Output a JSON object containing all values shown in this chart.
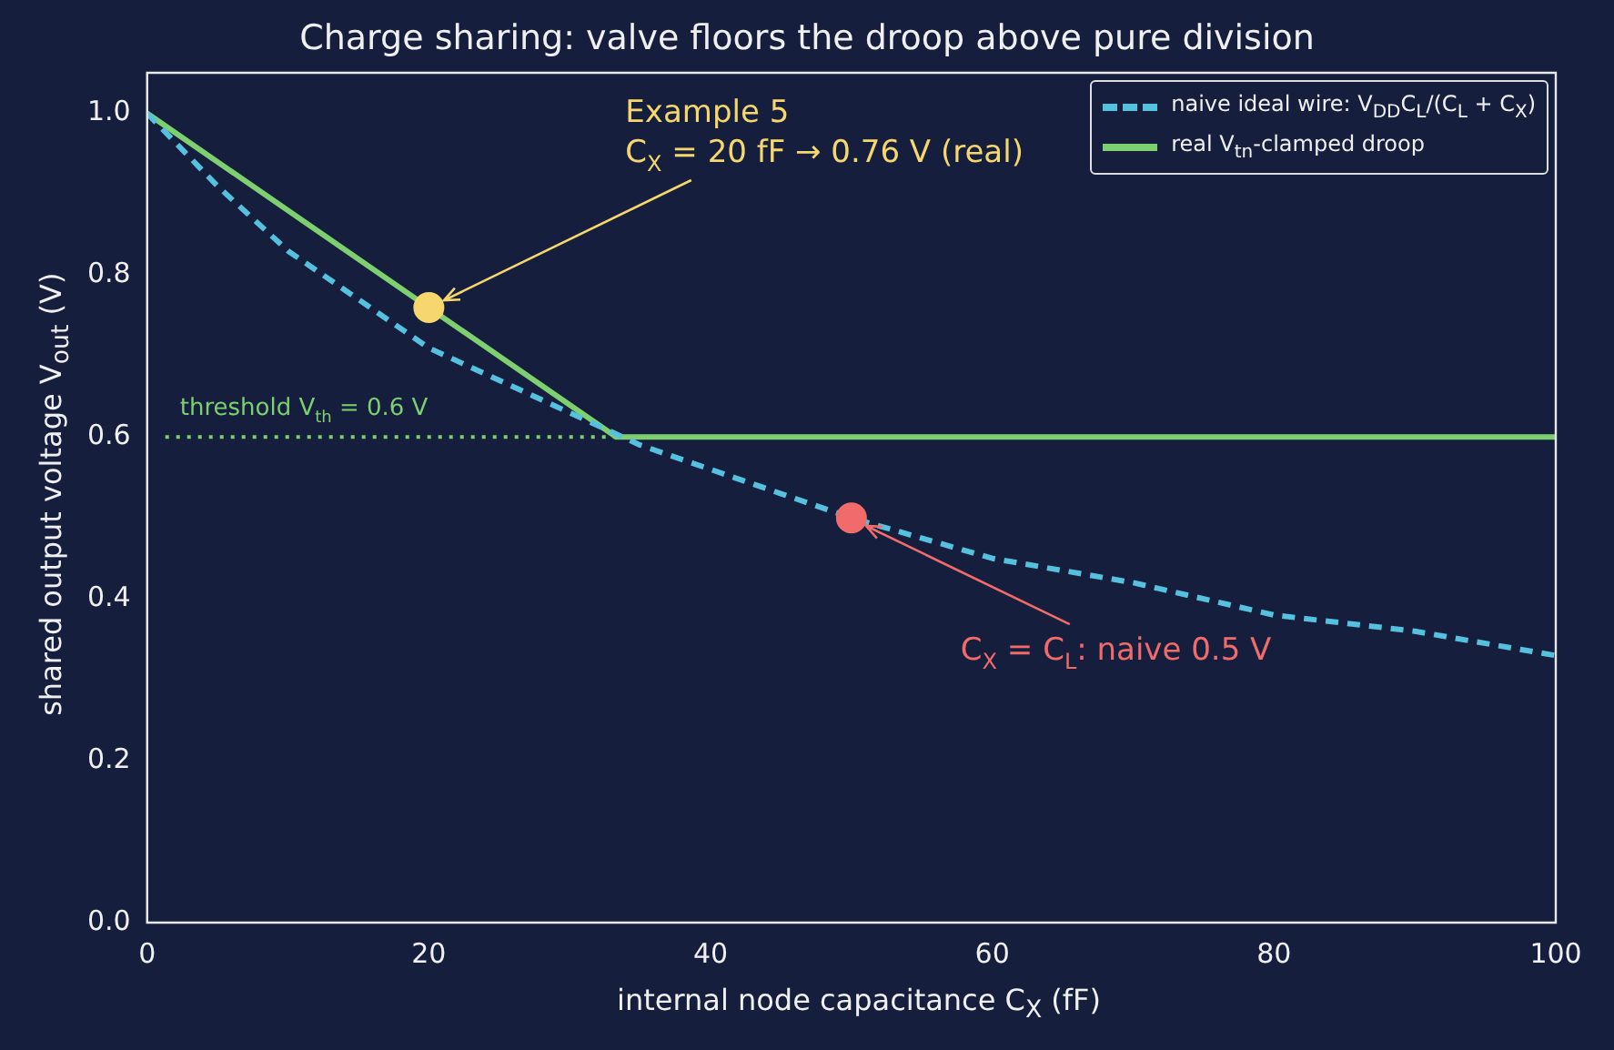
{
  "chart_data": {
    "type": "line",
    "title": "Charge sharing: valve floors the droop above pure division",
    "xlabel": "internal node capacitance C$_{X}$ (fF)",
    "ylabel": "shared output voltage V$_{out}$ (V)",
    "xlim": [
      0,
      100
    ],
    "ylim": [
      0,
      1.05
    ],
    "xticks": [
      0,
      20,
      40,
      60,
      80,
      100
    ],
    "yticks": [
      {
        "value": 0,
        "label": "0.0"
      },
      {
        "value": 0.2,
        "label": "0.2"
      },
      {
        "value": 0.4,
        "label": "0.4"
      },
      {
        "value": 0.6,
        "label": "0.6"
      },
      {
        "value": 0.8,
        "label": "0.8"
      },
      {
        "value": 1,
        "label": "1.0"
      }
    ],
    "grid": false,
    "legend": "top right",
    "series": [
      {
        "name": "naive ideal wire: V$_{DD}$C$_{L}$/(C$_{L}$ + C$_{X}$)",
        "color": "#56c1de",
        "line_style": "dashed",
        "x": [
          0,
          5,
          10,
          15,
          20,
          25,
          30,
          35,
          40,
          45,
          50,
          60,
          70,
          80,
          90,
          100
        ],
        "values": [
          1,
          0.91,
          0.83,
          0.77,
          0.71,
          0.67,
          0.63,
          0.59,
          0.56,
          0.53,
          0.5,
          0.45,
          0.42,
          0.38,
          0.36,
          0.33
        ]
      },
      {
        "name": "real V$_{tn}$-clamped droop",
        "color": "#7dcf6f",
        "line_style": "solid",
        "x": [
          0,
          33.3,
          100
        ],
        "values": [
          1,
          0.6,
          0.6
        ]
      },
      {
        "type": "scatter",
        "color": "#f5d76e",
        "marker": "circle",
        "x": [
          20
        ],
        "values": [
          0.76
        ]
      },
      {
        "type": "scatter",
        "color": "#f26b6b",
        "marker": "circle",
        "x": [
          50
        ],
        "values": [
          0.5
        ]
      }
    ],
    "ref_lines": [
      {
        "axis": "y",
        "value": 0.6,
        "label": "threshold V$_{th}$ = 0.6 V",
        "color": "#7dcf6f",
        "line_style": "dotted"
      }
    ],
    "annotations": [
      {
        "text": "Example 5\nC$_{X}$ = 20 fF → 0.76 V (real)",
        "x": 20,
        "y": 0.76
      },
      {
        "text": "C$_{X}$ = C$_{L}$: naive 0.5 V",
        "x": 50,
        "y": 0.5
      }
    ]
  }
}
